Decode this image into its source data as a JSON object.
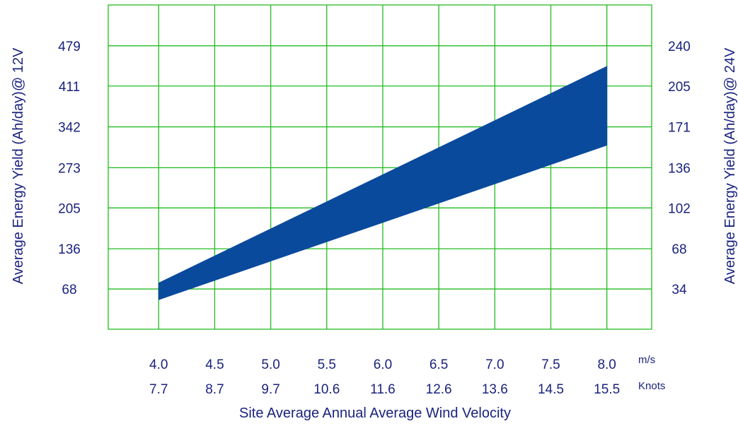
{
  "chart_data": {
    "type": "area",
    "xlabel": "Site Average Annual Average Wind Velocity",
    "ylabel_left": "Average Energy Yield (Ah/day)@ 12V",
    "ylabel_right": "Average Energy Yield (Ah/day)@ 24V",
    "x_ticks_ms": [
      "4.0",
      "4.5",
      "5.0",
      "5.5",
      "6.0",
      "6.5",
      "7.0",
      "7.5",
      "8.0"
    ],
    "x_ticks_knots": [
      "7.7",
      "8.7",
      "9.7",
      "10.6",
      "11.6",
      "12.6",
      "13.6",
      "14.5",
      "15.5"
    ],
    "x_unit_ms": "m/s",
    "x_unit_knots": "Knots",
    "y_ticks_left": [
      "68",
      "136",
      "205",
      "273",
      "342",
      "411",
      "479"
    ],
    "y_ticks_right": [
      "34",
      "68",
      "102",
      "136",
      "171",
      "205",
      "240"
    ],
    "xlim": [
      3.55,
      8.4
    ],
    "ylim_left": [
      0,
      548
    ],
    "grid": true,
    "band_color": "#0a4a9c",
    "grid_color": "#22bb22",
    "text_color": "#1a237e",
    "series": [
      {
        "x": [
          4.0,
          8.0
        ],
        "upper": [
          78,
          444
        ],
        "lower": [
          50,
          311
        ]
      }
    ]
  }
}
